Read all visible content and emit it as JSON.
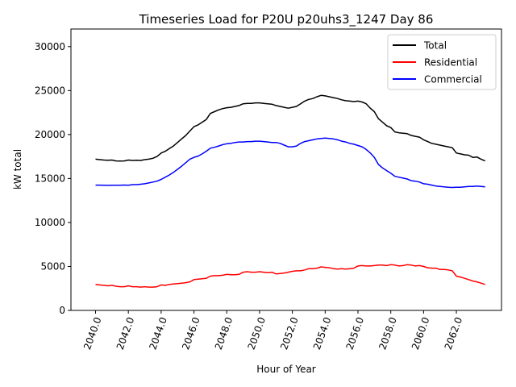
{
  "chart_data": {
    "type": "line",
    "title": "Timeseries Load for P20U p20uhs3_1247  Day 86",
    "xlabel": "Hour of Year",
    "ylabel": "kW total",
    "xlim": [
      2038.5,
      2064.75
    ],
    "ylim": [
      0,
      32000
    ],
    "xticks": [
      2040,
      2042,
      2044,
      2046,
      2048,
      2050,
      2052,
      2054,
      2056,
      2058,
      2060,
      2062
    ],
    "xtick_labels": [
      "2040.0",
      "2042.0",
      "2044.0",
      "2046.0",
      "2048.0",
      "2050.0",
      "2052.0",
      "2054.0",
      "2056.0",
      "2058.0",
      "2060.0",
      "2062.0"
    ],
    "yticks": [
      0,
      5000,
      10000,
      15000,
      20000,
      25000,
      30000
    ],
    "ytick_labels": [
      "0",
      "5000",
      "10000",
      "15000",
      "20000",
      "25000",
      "30000"
    ],
    "legend_position": "top-right",
    "grid": false,
    "x": [
      2040.0,
      2040.25,
      2040.5,
      2040.75,
      2041.0,
      2041.25,
      2041.5,
      2041.75,
      2042.0,
      2042.25,
      2042.5,
      2042.75,
      2043.0,
      2043.25,
      2043.5,
      2043.75,
      2044.0,
      2044.25,
      2044.5,
      2044.75,
      2045.0,
      2045.25,
      2045.5,
      2045.75,
      2046.0,
      2046.25,
      2046.5,
      2046.75,
      2047.0,
      2047.25,
      2047.5,
      2047.75,
      2048.0,
      2048.25,
      2048.5,
      2048.75,
      2049.0,
      2049.25,
      2049.5,
      2049.75,
      2050.0,
      2050.25,
      2050.5,
      2050.75,
      2051.0,
      2051.25,
      2051.5,
      2051.75,
      2052.0,
      2052.25,
      2052.5,
      2052.75,
      2053.0,
      2053.25,
      2053.5,
      2053.75,
      2054.0,
      2054.25,
      2054.5,
      2054.75,
      2055.0,
      2055.25,
      2055.5,
      2055.75,
      2056.0,
      2056.25,
      2056.5,
      2056.75,
      2057.0,
      2057.25,
      2057.5,
      2057.75,
      2058.0,
      2058.25,
      2058.5,
      2058.75,
      2059.0,
      2059.25,
      2059.5,
      2059.75,
      2060.0,
      2060.25,
      2060.5,
      2060.75,
      2061.0,
      2061.25,
      2061.5,
      2061.75,
      2062.0,
      2062.25,
      2062.5,
      2062.75,
      2063.0,
      2063.25,
      2063.5,
      2063.75
    ],
    "series": [
      {
        "name": "Total",
        "color": "#000000",
        "values": [
          17200,
          17150,
          17100,
          17080,
          17100,
          17000,
          16980,
          17000,
          17100,
          17050,
          17080,
          17050,
          17150,
          17200,
          17300,
          17500,
          17900,
          18100,
          18400,
          18700,
          19100,
          19500,
          19900,
          20400,
          20900,
          21100,
          21400,
          21700,
          22400,
          22600,
          22800,
          22950,
          23050,
          23100,
          23200,
          23300,
          23500,
          23550,
          23550,
          23600,
          23600,
          23550,
          23500,
          23450,
          23300,
          23200,
          23100,
          23000,
          23100,
          23200,
          23500,
          23800,
          24000,
          24100,
          24300,
          24450,
          24400,
          24300,
          24200,
          24100,
          23950,
          23850,
          23800,
          23750,
          23800,
          23700,
          23500,
          23000,
          22600,
          21800,
          21400,
          21000,
          20800,
          20300,
          20200,
          20150,
          20100,
          19900,
          19800,
          19700,
          19400,
          19200,
          19000,
          18900,
          18800,
          18700,
          18600,
          18500,
          17900,
          17800,
          17700,
          17650,
          17400,
          17450,
          17200,
          17000
        ]
      },
      {
        "name": "Residential",
        "color": "#ff0000",
        "values": [
          2950,
          2900,
          2850,
          2800,
          2850,
          2750,
          2700,
          2700,
          2800,
          2700,
          2700,
          2650,
          2700,
          2650,
          2650,
          2700,
          2900,
          2850,
          2950,
          3000,
          3050,
          3100,
          3150,
          3250,
          3500,
          3550,
          3600,
          3650,
          3900,
          3950,
          3950,
          4000,
          4100,
          4050,
          4050,
          4100,
          4350,
          4400,
          4350,
          4350,
          4400,
          4350,
          4300,
          4350,
          4150,
          4200,
          4250,
          4350,
          4450,
          4500,
          4500,
          4600,
          4750,
          4750,
          4800,
          4950,
          4900,
          4850,
          4750,
          4700,
          4750,
          4700,
          4750,
          4800,
          5050,
          5100,
          5050,
          5050,
          5100,
          5150,
          5150,
          5100,
          5200,
          5150,
          5050,
          5100,
          5200,
          5150,
          5050,
          5100,
          5000,
          4850,
          4800,
          4800,
          4650,
          4650,
          4600,
          4500,
          3900,
          3800,
          3650,
          3500,
          3350,
          3250,
          3100,
          2950
        ]
      },
      {
        "name": "Commercial",
        "color": "#0000ff",
        "values": [
          14250,
          14250,
          14230,
          14220,
          14230,
          14230,
          14230,
          14260,
          14240,
          14300,
          14300,
          14350,
          14400,
          14500,
          14600,
          14700,
          14900,
          15150,
          15400,
          15700,
          16050,
          16400,
          16800,
          17200,
          17400,
          17550,
          17800,
          18100,
          18450,
          18550,
          18700,
          18850,
          18950,
          19000,
          19100,
          19150,
          19150,
          19200,
          19200,
          19250,
          19250,
          19200,
          19150,
          19100,
          19100,
          19000,
          18800,
          18600,
          18600,
          18700,
          19000,
          19200,
          19300,
          19400,
          19500,
          19550,
          19600,
          19550,
          19500,
          19400,
          19250,
          19150,
          19000,
          18900,
          18750,
          18600,
          18300,
          17900,
          17400,
          16600,
          16200,
          15900,
          15600,
          15250,
          15150,
          15050,
          14950,
          14750,
          14700,
          14600,
          14400,
          14350,
          14250,
          14150,
          14100,
          14050,
          14000,
          13980,
          14000,
          14000,
          14050,
          14100,
          14100,
          14150,
          14100,
          14050
        ]
      }
    ]
  }
}
